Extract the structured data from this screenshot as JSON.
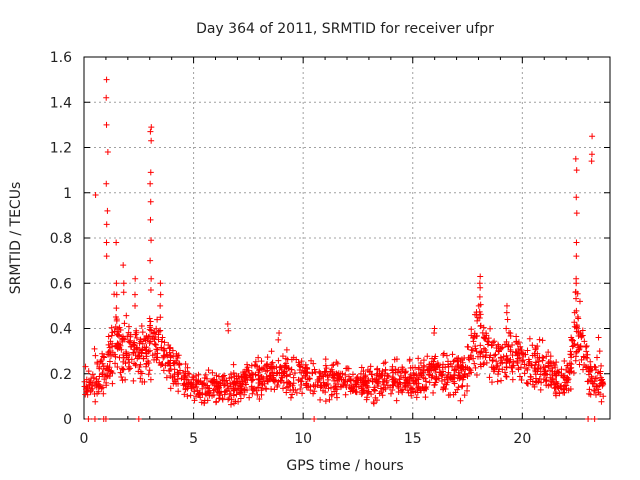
{
  "chart_data": {
    "type": "scatter",
    "title": "Day 364 of 2011, SRMTID for receiver ufpr",
    "xlabel": "GPS time / hours",
    "ylabel": "SRMTID / TECUs",
    "xlim": [
      0,
      24
    ],
    "ylim": [
      0,
      1.6
    ],
    "xticks": [
      "0",
      "5",
      "10",
      "15",
      "20"
    ],
    "yticks": [
      "0",
      "0.2",
      "0.4",
      "0.6",
      "0.8",
      "1",
      "1.2",
      "1.4",
      "1.6"
    ],
    "grid": true,
    "marker": "+",
    "series_color": "#ff0000",
    "envelope": {
      "description": "estimated typical SRMTID level vs time (dense scatter, representative trace)",
      "hours": [
        0,
        0.5,
        1,
        1.3,
        1.8,
        2.5,
        3,
        3.5,
        4,
        5,
        6,
        7,
        8,
        9,
        10,
        11,
        12,
        13,
        14,
        15,
        16,
        17,
        17.5,
        18,
        18.5,
        19,
        20,
        21,
        22,
        22.5,
        23,
        23.5
      ],
      "srmtid": [
        0.15,
        0.16,
        0.22,
        0.38,
        0.32,
        0.28,
        0.32,
        0.3,
        0.22,
        0.15,
        0.14,
        0.15,
        0.19,
        0.2,
        0.18,
        0.18,
        0.16,
        0.15,
        0.18,
        0.17,
        0.2,
        0.2,
        0.21,
        0.38,
        0.28,
        0.27,
        0.26,
        0.22,
        0.16,
        0.42,
        0.2,
        0.17
      ]
    },
    "peaks": [
      {
        "hour": 0.5,
        "values": [
          0.99,
          0.31,
          0.28
        ]
      },
      {
        "hour": 1.05,
        "values": [
          1.5,
          1.42,
          1.3,
          1.18,
          1.04,
          0.92,
          0.86,
          0.78,
          0.72
        ]
      },
      {
        "hour": 1.5,
        "values": [
          0.78,
          0.6,
          0.55,
          0.49
        ]
      },
      {
        "hour": 1.8,
        "values": [
          0.68,
          0.6,
          0.56
        ]
      },
      {
        "hour": 2.3,
        "values": [
          0.62,
          0.55,
          0.5
        ]
      },
      {
        "hour": 3.05,
        "values": [
          1.29,
          1.27,
          1.23,
          1.09,
          1.04,
          0.96,
          0.88,
          0.79,
          0.7,
          0.62,
          0.57
        ]
      },
      {
        "hour": 3.5,
        "values": [
          0.6,
          0.55,
          0.5,
          0.45
        ]
      },
      {
        "hour": 6.6,
        "values": [
          0.42,
          0.39
        ]
      },
      {
        "hour": 8.9,
        "values": [
          0.38,
          0.35
        ]
      },
      {
        "hour": 16.0,
        "values": [
          0.4,
          0.38
        ]
      },
      {
        "hour": 18.05,
        "values": [
          0.63,
          0.6,
          0.58,
          0.54,
          0.5
        ]
      },
      {
        "hour": 19.3,
        "values": [
          0.5,
          0.47,
          0.44,
          0.4
        ]
      },
      {
        "hour": 22.45,
        "values": [
          1.15,
          1.1,
          0.98,
          0.91,
          0.78,
          0.72,
          0.62,
          0.6,
          0.56
        ]
      },
      {
        "hour": 23.2,
        "values": [
          1.25,
          1.17,
          1.14
        ]
      },
      {
        "hour": 23.5,
        "values": [
          0.36,
          0.3
        ]
      }
    ],
    "zeros": [
      0.2,
      0.5,
      0.9,
      1.0,
      2.5,
      10.5,
      23.0,
      23.3
    ]
  }
}
